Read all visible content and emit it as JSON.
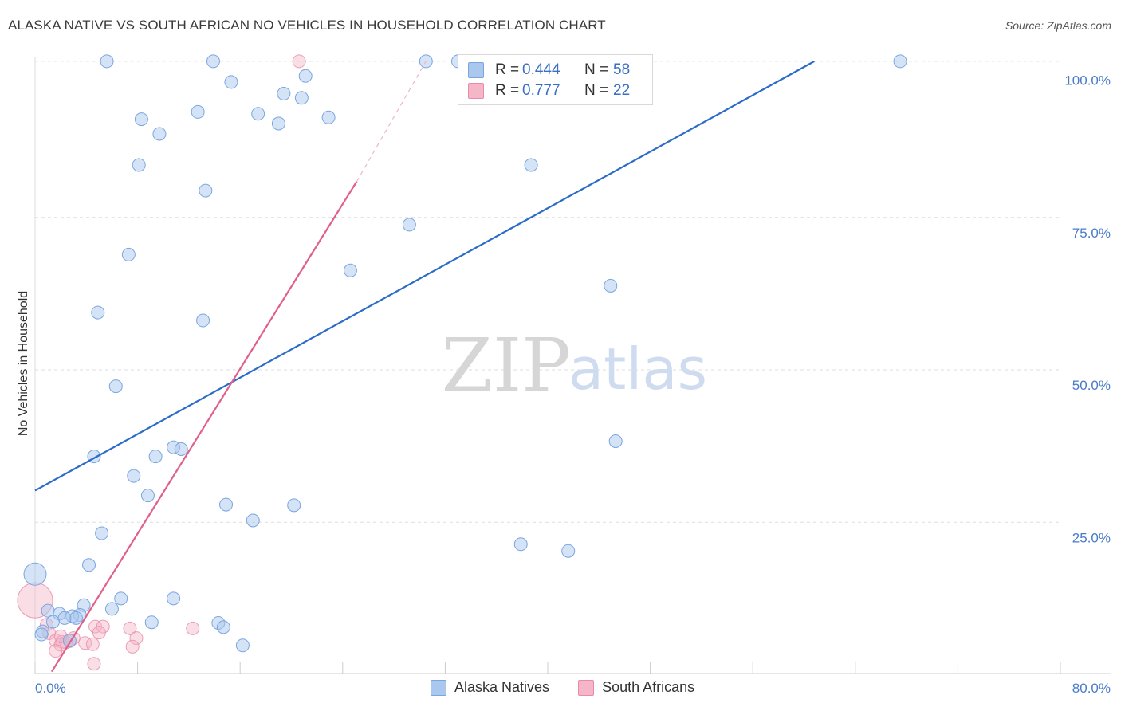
{
  "header": {
    "title": "ALASKA NATIVE VS SOUTH AFRICAN NO VEHICLES IN HOUSEHOLD CORRELATION CHART",
    "source": "Source: ZipAtlas.com"
  },
  "watermark": {
    "zip": "ZIP",
    "atlas": "atlas"
  },
  "legend_top": {
    "rows": [
      {
        "r_label": "R =",
        "r_value": "0.444",
        "n_label": "N =",
        "n_value": "58",
        "color": "#aac8ee"
      },
      {
        "r_label": "R =",
        "r_value": "0.777",
        "n_label": "N =",
        "n_value": "22",
        "color": "#f5b6c8"
      }
    ]
  },
  "legend_bottom": {
    "items": [
      {
        "label": "Alaska Natives",
        "color": "#aac8ee"
      },
      {
        "label": "South Africans",
        "color": "#f5b6c8"
      }
    ]
  },
  "colors": {
    "blue_fill": "#aac8ee",
    "blue_stroke": "#7aa6e0",
    "blue_line": "#2b6cc8",
    "pink_fill": "#f5b6c8",
    "pink_stroke": "#e88aa8",
    "pink_line": "#e0608a",
    "grid": "#dddddd",
    "axis_text": "#4a7bc8"
  },
  "chart_data": {
    "type": "scatter",
    "title": "ALASKA NATIVE VS SOUTH AFRICAN NO VEHICLES IN HOUSEHOLD CORRELATION CHART",
    "xlabel": "",
    "ylabel": "No Vehicles in Household",
    "xlim": [
      0,
      80
    ],
    "ylim": [
      0,
      102
    ],
    "x_tick_labels": [
      "0.0%",
      "80.0%"
    ],
    "y_ticks": [
      25,
      50,
      75,
      100
    ],
    "y_tick_labels": [
      "25.0%",
      "50.0%",
      "75.0%",
      "100.0%"
    ],
    "legend_position": "top-center",
    "series": [
      {
        "name": "Alaska Natives",
        "r": 0.444,
        "n": 58,
        "trend": {
          "x": [
            0,
            60.8
          ],
          "y": [
            30.2,
            100.6
          ]
        },
        "points": [
          {
            "x": 5.6,
            "y": 100.6
          },
          {
            "x": 13.9,
            "y": 100.6
          },
          {
            "x": 30.5,
            "y": 100.6
          },
          {
            "x": 33.0,
            "y": 100.6
          },
          {
            "x": 67.5,
            "y": 100.6
          },
          {
            "x": 21.1,
            "y": 98.2
          },
          {
            "x": 15.3,
            "y": 97.2
          },
          {
            "x": 19.4,
            "y": 95.3
          },
          {
            "x": 20.8,
            "y": 94.6
          },
          {
            "x": 12.7,
            "y": 92.3
          },
          {
            "x": 17.4,
            "y": 92.0
          },
          {
            "x": 22.9,
            "y": 91.4
          },
          {
            "x": 8.3,
            "y": 91.1
          },
          {
            "x": 19.0,
            "y": 90.4
          },
          {
            "x": 9.7,
            "y": 88.7
          },
          {
            "x": 8.1,
            "y": 83.6
          },
          {
            "x": 38.7,
            "y": 83.6
          },
          {
            "x": 13.3,
            "y": 79.4
          },
          {
            "x": 29.2,
            "y": 73.8
          },
          {
            "x": 7.3,
            "y": 68.9
          },
          {
            "x": 24.6,
            "y": 66.3
          },
          {
            "x": 44.9,
            "y": 63.8
          },
          {
            "x": 4.9,
            "y": 59.4
          },
          {
            "x": 13.1,
            "y": 58.1
          },
          {
            "x": 6.3,
            "y": 47.3
          },
          {
            "x": 45.3,
            "y": 38.3
          },
          {
            "x": 10.8,
            "y": 37.3
          },
          {
            "x": 11.4,
            "y": 37.0
          },
          {
            "x": 4.6,
            "y": 35.8
          },
          {
            "x": 9.4,
            "y": 35.8
          },
          {
            "x": 7.7,
            "y": 32.6
          },
          {
            "x": 8.8,
            "y": 29.4
          },
          {
            "x": 14.9,
            "y": 27.9
          },
          {
            "x": 20.2,
            "y": 27.8
          },
          {
            "x": 17.0,
            "y": 25.3
          },
          {
            "x": 5.2,
            "y": 23.2
          },
          {
            "x": 37.9,
            "y": 21.4
          },
          {
            "x": 41.6,
            "y": 20.3
          },
          {
            "x": 4.2,
            "y": 18.0
          },
          {
            "x": 0.0,
            "y": 16.5
          },
          {
            "x": 6.7,
            "y": 12.5
          },
          {
            "x": 10.8,
            "y": 12.5
          },
          {
            "x": 3.8,
            "y": 11.4
          },
          {
            "x": 6.0,
            "y": 10.8
          },
          {
            "x": 1.0,
            "y": 10.5
          },
          {
            "x": 1.9,
            "y": 10.0
          },
          {
            "x": 3.5,
            "y": 9.8
          },
          {
            "x": 2.9,
            "y": 9.6
          },
          {
            "x": 3.2,
            "y": 9.3
          },
          {
            "x": 2.3,
            "y": 9.3
          },
          {
            "x": 1.4,
            "y": 8.7
          },
          {
            "x": 9.1,
            "y": 8.6
          },
          {
            "x": 14.3,
            "y": 8.5
          },
          {
            "x": 14.7,
            "y": 7.8
          },
          {
            "x": 0.6,
            "y": 7.1
          },
          {
            "x": 0.5,
            "y": 6.6
          },
          {
            "x": 16.2,
            "y": 4.8
          },
          {
            "x": 2.7,
            "y": 5.6
          }
        ]
      },
      {
        "name": "South Africans",
        "r": 0.777,
        "n": 22,
        "trend": {
          "x": [
            1.3,
            25.1
          ],
          "y": [
            0.5,
            80.9
          ]
        },
        "trend_extension": {
          "x": [
            25.1,
            30.5
          ],
          "y": [
            80.9,
            100.6
          ]
        },
        "points": [
          {
            "x": 20.6,
            "y": 100.6
          },
          {
            "x": 0.0,
            "y": 12.2
          },
          {
            "x": 0.9,
            "y": 8.2
          },
          {
            "x": 4.7,
            "y": 7.9
          },
          {
            "x": 5.3,
            "y": 7.9
          },
          {
            "x": 7.4,
            "y": 7.6
          },
          {
            "x": 12.3,
            "y": 7.6
          },
          {
            "x": 5.0,
            "y": 6.9
          },
          {
            "x": 1.1,
            "y": 6.8
          },
          {
            "x": 7.9,
            "y": 6.0
          },
          {
            "x": 3.0,
            "y": 6.0
          },
          {
            "x": 1.6,
            "y": 5.6
          },
          {
            "x": 2.1,
            "y": 5.4
          },
          {
            "x": 2.4,
            "y": 5.3
          },
          {
            "x": 2.7,
            "y": 5.5
          },
          {
            "x": 3.9,
            "y": 5.2
          },
          {
            "x": 4.5,
            "y": 5.0
          },
          {
            "x": 2.0,
            "y": 4.9
          },
          {
            "x": 7.6,
            "y": 4.6
          },
          {
            "x": 1.6,
            "y": 3.9
          },
          {
            "x": 4.6,
            "y": 1.8
          },
          {
            "x": 2.0,
            "y": 6.3
          }
        ]
      }
    ]
  }
}
